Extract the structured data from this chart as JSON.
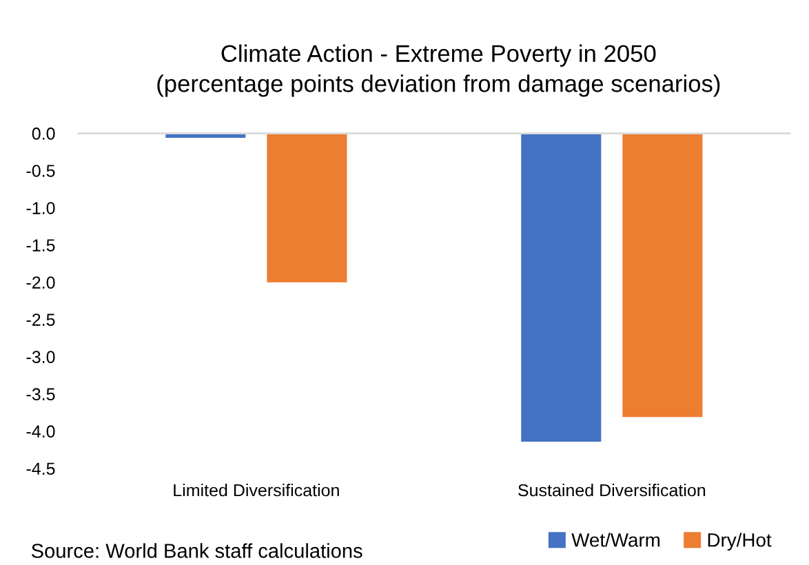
{
  "chart_data": {
    "type": "bar",
    "title": "Climate Action - Extreme Poverty in 2050\n(percentage points deviation from damage scenarios)",
    "categories": [
      "Limited Diversification",
      "Sustained Diversification"
    ],
    "series": [
      {
        "name": "Wet/Warm",
        "color": "#4472c4",
        "values": [
          -0.06,
          -4.14
        ]
      },
      {
        "name": "Dry/Hot",
        "color": "#ed7d31",
        "values": [
          -2.0,
          -3.81
        ]
      }
    ],
    "ylim": [
      -4.5,
      0
    ],
    "yticks": [
      {
        "value": 0,
        "label": "0.0"
      },
      {
        "value": -0.5,
        "label": "-0.5"
      },
      {
        "value": -1,
        "label": "-1.0"
      },
      {
        "value": -1.5,
        "label": "-1.5"
      },
      {
        "value": -2,
        "label": "-2.0"
      },
      {
        "value": -2.5,
        "label": "-2.5"
      },
      {
        "value": -3,
        "label": "-3.0"
      },
      {
        "value": -3.5,
        "label": "-3.5"
      },
      {
        "value": -4,
        "label": "-4.0"
      },
      {
        "value": -4.5,
        "label": "-4.5"
      }
    ],
    "grid": false,
    "legend": "bottom right",
    "annotations": [
      "Source: World Bank staff calculations"
    ]
  }
}
